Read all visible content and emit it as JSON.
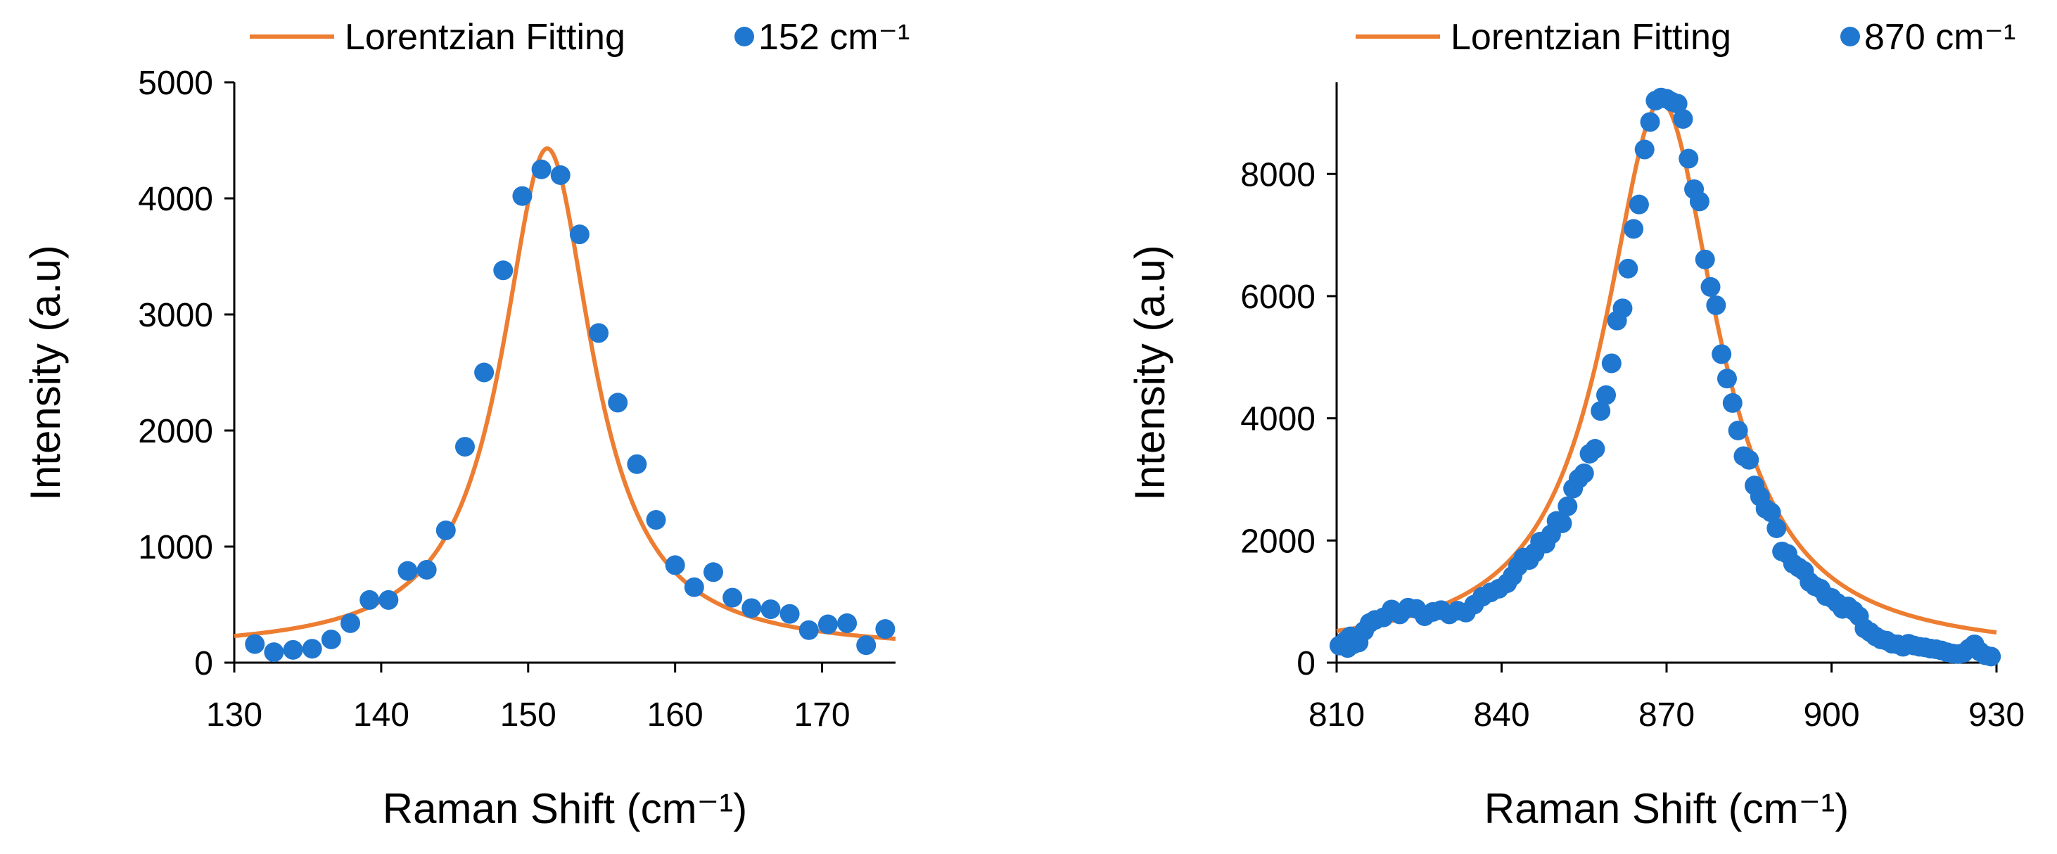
{
  "colors": {
    "fit": "#ED7D31",
    "points": "#1F77D0",
    "axis": "#000000"
  },
  "chart_data": [
    {
      "type": "scatter",
      "title": "",
      "legend": {
        "position": "top",
        "fit_label": "Lorentzian Fitting",
        "points_label": "152 cm⁻¹"
      },
      "xlabel": "Raman Shift (cm⁻¹)",
      "ylabel": "Intensity (a.u)",
      "xlim": [
        130,
        175
      ],
      "ylim": [
        0,
        5000
      ],
      "xticks": [
        130,
        140,
        150,
        160,
        170
      ],
      "yticks": [
        0,
        1000,
        2000,
        3000,
        4000,
        5000
      ],
      "xtick_labels": [
        "130",
        "140",
        "150",
        "160",
        "170"
      ],
      "ytick_labels": [
        "0",
        "1000",
        "2000",
        "3000",
        "4000",
        "5000"
      ],
      "fit": {
        "model": "lorentzian",
        "center": 151.3,
        "fwhm": 7.5,
        "amplitude": 4330,
        "baseline": 100,
        "x_range": [
          130,
          175
        ]
      },
      "series": [
        {
          "name": "152 cm⁻¹",
          "x": [
            131.4,
            132.7,
            134.0,
            135.3,
            136.6,
            137.9,
            139.2,
            140.5,
            141.8,
            143.1,
            144.4,
            145.7,
            147.0,
            148.3,
            149.6,
            150.9,
            152.2,
            153.5,
            154.8,
            156.1,
            157.4,
            158.7,
            160.0,
            161.3,
            162.6,
            163.9,
            165.2,
            166.5,
            167.8,
            169.1,
            170.4,
            171.7,
            173.0,
            174.3
          ],
          "y": [
            160,
            90,
            110,
            120,
            200,
            340,
            540,
            540,
            790,
            800,
            1140,
            1860,
            2500,
            3380,
            4020,
            4250,
            4200,
            3690,
            2840,
            2240,
            1710,
            1230,
            840,
            650,
            780,
            560,
            470,
            460,
            420,
            280,
            330,
            340,
            150,
            290
          ]
        }
      ]
    },
    {
      "type": "scatter",
      "title": "",
      "legend": {
        "position": "top",
        "fit_label": "Lorentzian Fitting",
        "points_label": "870 cm⁻¹"
      },
      "xlabel": "Raman Shift (cm⁻¹)",
      "ylabel": "Intensity (a.u)",
      "xlim": [
        810,
        930
      ],
      "ylim": [
        0,
        9500
      ],
      "xticks": [
        810,
        840,
        870,
        900,
        930
      ],
      "yticks": [
        0,
        2000,
        4000,
        6000,
        8000
      ],
      "xtick_labels": [
        "810",
        "840",
        "870",
        "900",
        "930"
      ],
      "ytick_labels": [
        "0",
        "2000",
        "4000",
        "6000",
        "8000"
      ],
      "fit": {
        "model": "lorentzian",
        "center": 869,
        "fwhm": 25,
        "amplitude": 9050,
        "baseline": 130,
        "x_range": [
          810,
          930
        ]
      },
      "series": [
        {
          "name": "870 cm⁻¹",
          "x": [
            810.5,
            811.5,
            812.0,
            812.5,
            813.0,
            813.5,
            814.0,
            815.0,
            816.0,
            817.0,
            818.5,
            820.0,
            821.5,
            823.0,
            824.5,
            826.0,
            827.5,
            829.0,
            830.5,
            832.0,
            833.5,
            835.0,
            836.5,
            838.0,
            839.5,
            841.0,
            842.0,
            843.0,
            844.0,
            845.0,
            846.0,
            847.0,
            848.0,
            849.0,
            850.0,
            851.0,
            852.0,
            853.0,
            854.0,
            855.0,
            856.0,
            857.0,
            858.0,
            859.0,
            860.0,
            861.0,
            862.0,
            863.0,
            864.0,
            865.0,
            866.0,
            867.0,
            868.0,
            869.0,
            870.0,
            871.0,
            872.0,
            873.0,
            874.0,
            875.0,
            876.0,
            877.0,
            878.0,
            879.0,
            880.0,
            881.0,
            882.0,
            883.0,
            884.0,
            885.0,
            886.0,
            887.0,
            888.0,
            889.0,
            890.0,
            891.0,
            892.0,
            893.0,
            894.0,
            895.0,
            896.0,
            897.0,
            898.0,
            899.0,
            900.0,
            901.0,
            902.0,
            903.0,
            904.0,
            905.0,
            906.0,
            907.0,
            908.0,
            909.0,
            910.0,
            911.0,
            912.0,
            913.0,
            914.0,
            915.0,
            916.0,
            917.0,
            918.0,
            919.0,
            920.0,
            921.0,
            922.0,
            923.0,
            924.0,
            925.0,
            926.0,
            927.0,
            928.0,
            929.0
          ],
          "y": [
            280,
            350,
            240,
            430,
            300,
            410,
            330,
            520,
            650,
            700,
            740,
            870,
            790,
            900,
            880,
            760,
            830,
            860,
            790,
            850,
            820,
            950,
            1080,
            1150,
            1210,
            1300,
            1420,
            1580,
            1720,
            1680,
            1800,
            1980,
            1950,
            2100,
            2320,
            2280,
            2560,
            2850,
            3010,
            3100,
            3420,
            3500,
            4120,
            4380,
            4900,
            5600,
            5800,
            6450,
            7100,
            7500,
            8400,
            8850,
            9200,
            9250,
            9230,
            9180,
            9150,
            8900,
            8250,
            7750,
            7550,
            6600,
            6150,
            5850,
            5050,
            4650,
            4250,
            3800,
            3380,
            3320,
            2900,
            2720,
            2520,
            2460,
            2200,
            1820,
            1780,
            1620,
            1560,
            1500,
            1320,
            1250,
            1210,
            1090,
            1060,
            980,
            880,
            920,
            850,
            760,
            560,
            500,
            430,
            380,
            360,
            310,
            300,
            260,
            310,
            280,
            260,
            250,
            230,
            220,
            200,
            170,
            150,
            140,
            160,
            230,
            300,
            180,
            120,
            100
          ]
        }
      ]
    }
  ]
}
